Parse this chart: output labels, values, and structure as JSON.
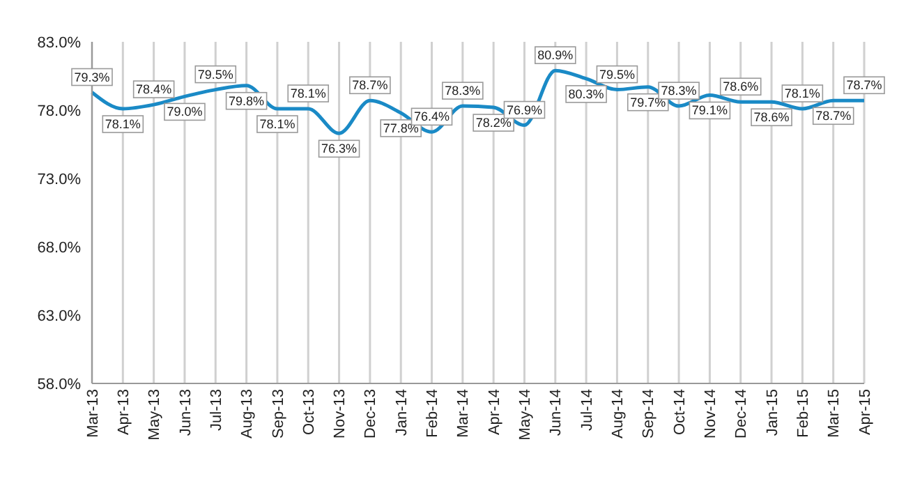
{
  "chart_data": {
    "type": "line",
    "categories": [
      "Mar-13",
      "Apr-13",
      "May-13",
      "Jun-13",
      "Jul-13",
      "Aug-13",
      "Sep-13",
      "Oct-13",
      "Nov-13",
      "Dec-13",
      "Jan-14",
      "Feb-14",
      "Mar-14",
      "Apr-14",
      "May-14",
      "Jun-14",
      "Jul-14",
      "Aug-14",
      "Sep-14",
      "Oct-14",
      "Nov-14",
      "Dec-14",
      "Jan-15",
      "Feb-15",
      "Mar-15",
      "Apr-15"
    ],
    "series": [
      {
        "color": "#1a8ac6",
        "values": [
          79.3,
          78.1,
          78.4,
          79.0,
          79.5,
          79.8,
          78.1,
          78.1,
          76.3,
          78.7,
          77.8,
          76.4,
          78.3,
          78.2,
          76.9,
          80.9,
          80.3,
          79.5,
          79.7,
          78.3,
          79.1,
          78.6,
          78.6,
          78.1,
          78.7,
          78.7
        ],
        "value_labels": [
          "79.3%",
          "78.1%",
          "78.4%",
          "79.0%",
          "79.5%",
          "79.8%",
          "78.1%",
          "78.1%",
          "76.3%",
          "78.7%",
          "77.8%",
          "76.4%",
          "78.3%",
          "78.2%",
          "76.9%",
          "80.9%",
          "80.3%",
          "79.5%",
          "79.7%",
          "78.3%",
          "79.1%",
          "78.6%",
          "78.6%",
          "78.1%",
          "78.7%",
          "78.7%"
        ]
      }
    ],
    "ylim": [
      58,
      83
    ],
    "yticks": [
      {
        "value": 58,
        "label": "58.0%"
      },
      {
        "value": 63,
        "label": "63.0%"
      },
      {
        "value": 68,
        "label": "68.0%"
      },
      {
        "value": 73,
        "label": "73.0%"
      },
      {
        "value": 78,
        "label": "78.0%"
      },
      {
        "value": 83,
        "label": "83.0%"
      }
    ],
    "grid": "x",
    "marker": "none",
    "line_style": "solid",
    "legend": false
  }
}
